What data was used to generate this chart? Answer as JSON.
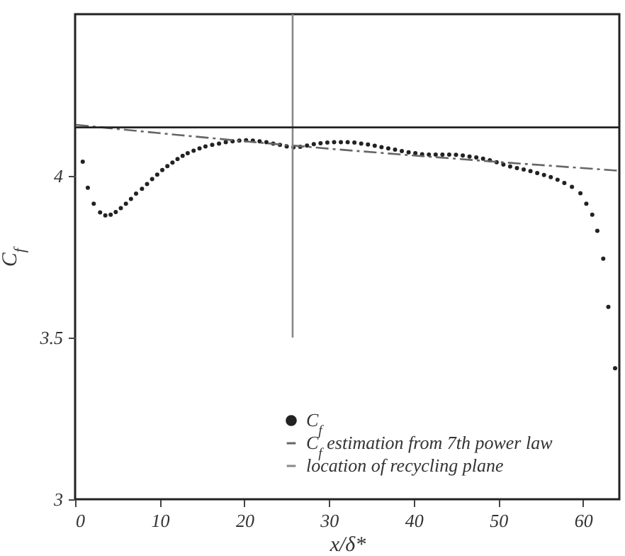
{
  "chart_data": {
    "type": "scatter",
    "xlabel": "x/δ*",
    "ylabel": "C$_{f}$",
    "xlim": [
      0,
      64.3
    ],
    "ylim": [
      3,
      4.5
    ],
    "xticks": [
      0,
      10,
      20,
      30,
      40,
      50,
      60
    ],
    "yticks": [
      3,
      3.5,
      4
    ],
    "grid": false,
    "legend": "bottom right",
    "series": [
      {
        "name": "C$_{f}$",
        "type": "scatter",
        "marker": "circle",
        "color": "#222222",
        "x": [
          0.9,
          1.5,
          2.2,
          2.95,
          3.57,
          4.2,
          4.8,
          5.4,
          6.0,
          6.6,
          7.2,
          7.9,
          8.5,
          9.1,
          9.7,
          10.3,
          10.9,
          11.5,
          12.1,
          12.7,
          13.3,
          14.0,
          14.7,
          15.4,
          16.2,
          17.0,
          17.8,
          18.6,
          19.4,
          20.2,
          21.0,
          21.8,
          22.6,
          23.4,
          24.2,
          25.0,
          25.8,
          26.6,
          27.4,
          28.2,
          29.0,
          29.8,
          30.6,
          31.4,
          32.2,
          33.0,
          33.8,
          34.6,
          35.4,
          36.2,
          37.0,
          37.8,
          38.6,
          39.4,
          40.2,
          41.0,
          41.8,
          42.6,
          43.4,
          44.2,
          45.0,
          45.8,
          46.6,
          47.4,
          48.2,
          49.0,
          49.8,
          50.6,
          51.4,
          52.2,
          53.0,
          53.8,
          54.6,
          55.4,
          56.2,
          57.0,
          57.8,
          58.7,
          59.7,
          60.4,
          61.1,
          61.7,
          62.4,
          63.0,
          63.8
        ],
        "values": [
          4.044,
          3.963,
          3.914,
          3.887,
          3.878,
          3.88,
          3.888,
          3.9,
          3.914,
          3.929,
          3.945,
          3.96,
          3.975,
          3.99,
          4.004,
          4.018,
          4.03,
          4.041,
          4.052,
          4.062,
          4.07,
          4.078,
          4.085,
          4.091,
          4.096,
          4.1,
          4.104,
          4.107,
          4.109,
          4.11,
          4.109,
          4.107,
          4.104,
          4.1,
          4.096,
          4.091,
          4.088,
          4.09,
          4.094,
          4.098,
          4.101,
          4.103,
          4.104,
          4.104,
          4.104,
          4.103,
          4.1,
          4.097,
          4.093,
          4.089,
          4.085,
          4.081,
          4.077,
          4.073,
          4.07,
          4.067,
          4.066,
          4.066,
          4.066,
          4.066,
          4.065,
          4.063,
          4.06,
          4.057,
          4.053,
          4.048,
          4.042,
          4.035,
          4.029,
          4.024,
          4.02,
          4.015,
          4.009,
          4.003,
          3.996,
          3.988,
          3.978,
          3.966,
          3.946,
          3.914,
          3.88,
          3.83,
          3.744,
          3.595,
          3.405
        ]
      },
      {
        "name": "C$_{f}$ estimation from 7th power law",
        "type": "line",
        "line_style": "dashed",
        "color": "#666666",
        "x": [
          0.1,
          5,
          10,
          20,
          30,
          40,
          50,
          60,
          64.3
        ],
        "values": [
          4.158,
          4.145,
          4.132,
          4.107,
          4.084,
          4.063,
          4.043,
          4.024,
          4.016
        ]
      },
      {
        "name": "location of recycling plane",
        "type": "line",
        "line_style": "solid",
        "color": "#888888",
        "x": [
          25.7,
          25.7
        ],
        "values": [
          3.5,
          4.5
        ]
      }
    ],
    "ref_lines": [
      {
        "axis": "y",
        "value": 4.15,
        "color": "#222222"
      }
    ]
  }
}
